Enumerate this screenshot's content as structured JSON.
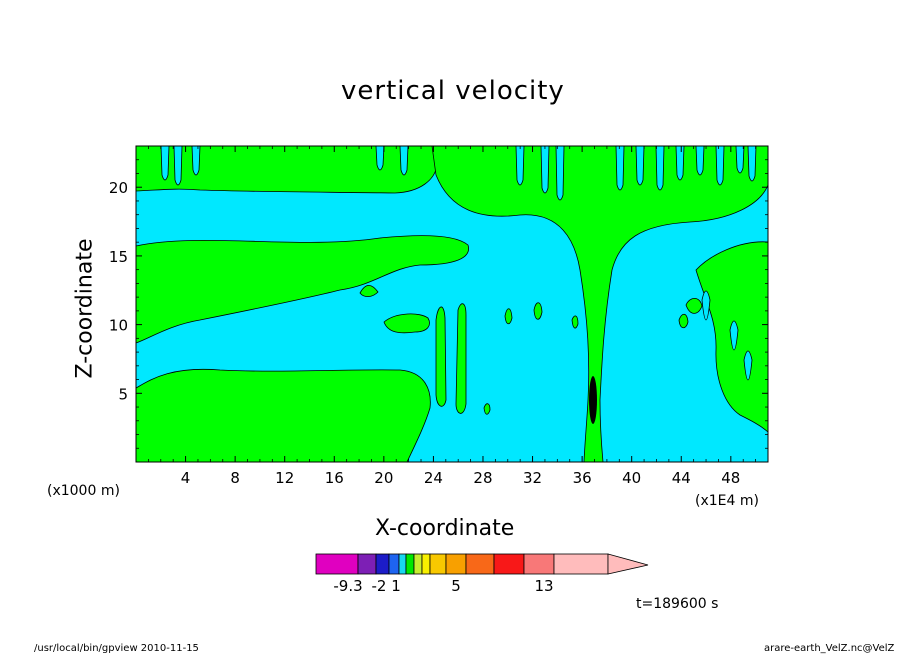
{
  "chart_data": {
    "type": "heatmap",
    "title": "vertical velocity",
    "xlabel": "X-coordinate",
    "ylabel": "Z-coordinate",
    "x_unit_left": "(x1000 m)",
    "x_unit_right": "(x1E4 m)",
    "xlim": [
      0,
      51
    ],
    "ylim": [
      0,
      23
    ],
    "x_ticks": [
      4,
      8,
      12,
      16,
      20,
      24,
      28,
      32,
      36,
      40,
      44,
      48
    ],
    "y_ticks": [
      5,
      10,
      15,
      20
    ],
    "colorbar": {
      "colors": [
        "#e000c0",
        "#7d1fb5",
        "#1c1cc8",
        "#1e64f0",
        "#18d8f0",
        "#00e800",
        "#c8ee30",
        "#f8f000",
        "#f8c800",
        "#f8a000",
        "#f86818",
        "#f81818",
        "#f87878",
        "#ffbcbc"
      ],
      "tick_labels": [
        "-9.3",
        "-2",
        "1",
        "5",
        "13"
      ],
      "extend": "max"
    },
    "field_colors": {
      "positive": "#00ff00",
      "background": "#00e8ff"
    },
    "time_label": "t=189600 s",
    "grid": false
  },
  "footer": {
    "left": "/usr/local/bin/gpview  2010-11-15",
    "right": "arare-earth_VelZ.nc@VelZ"
  }
}
